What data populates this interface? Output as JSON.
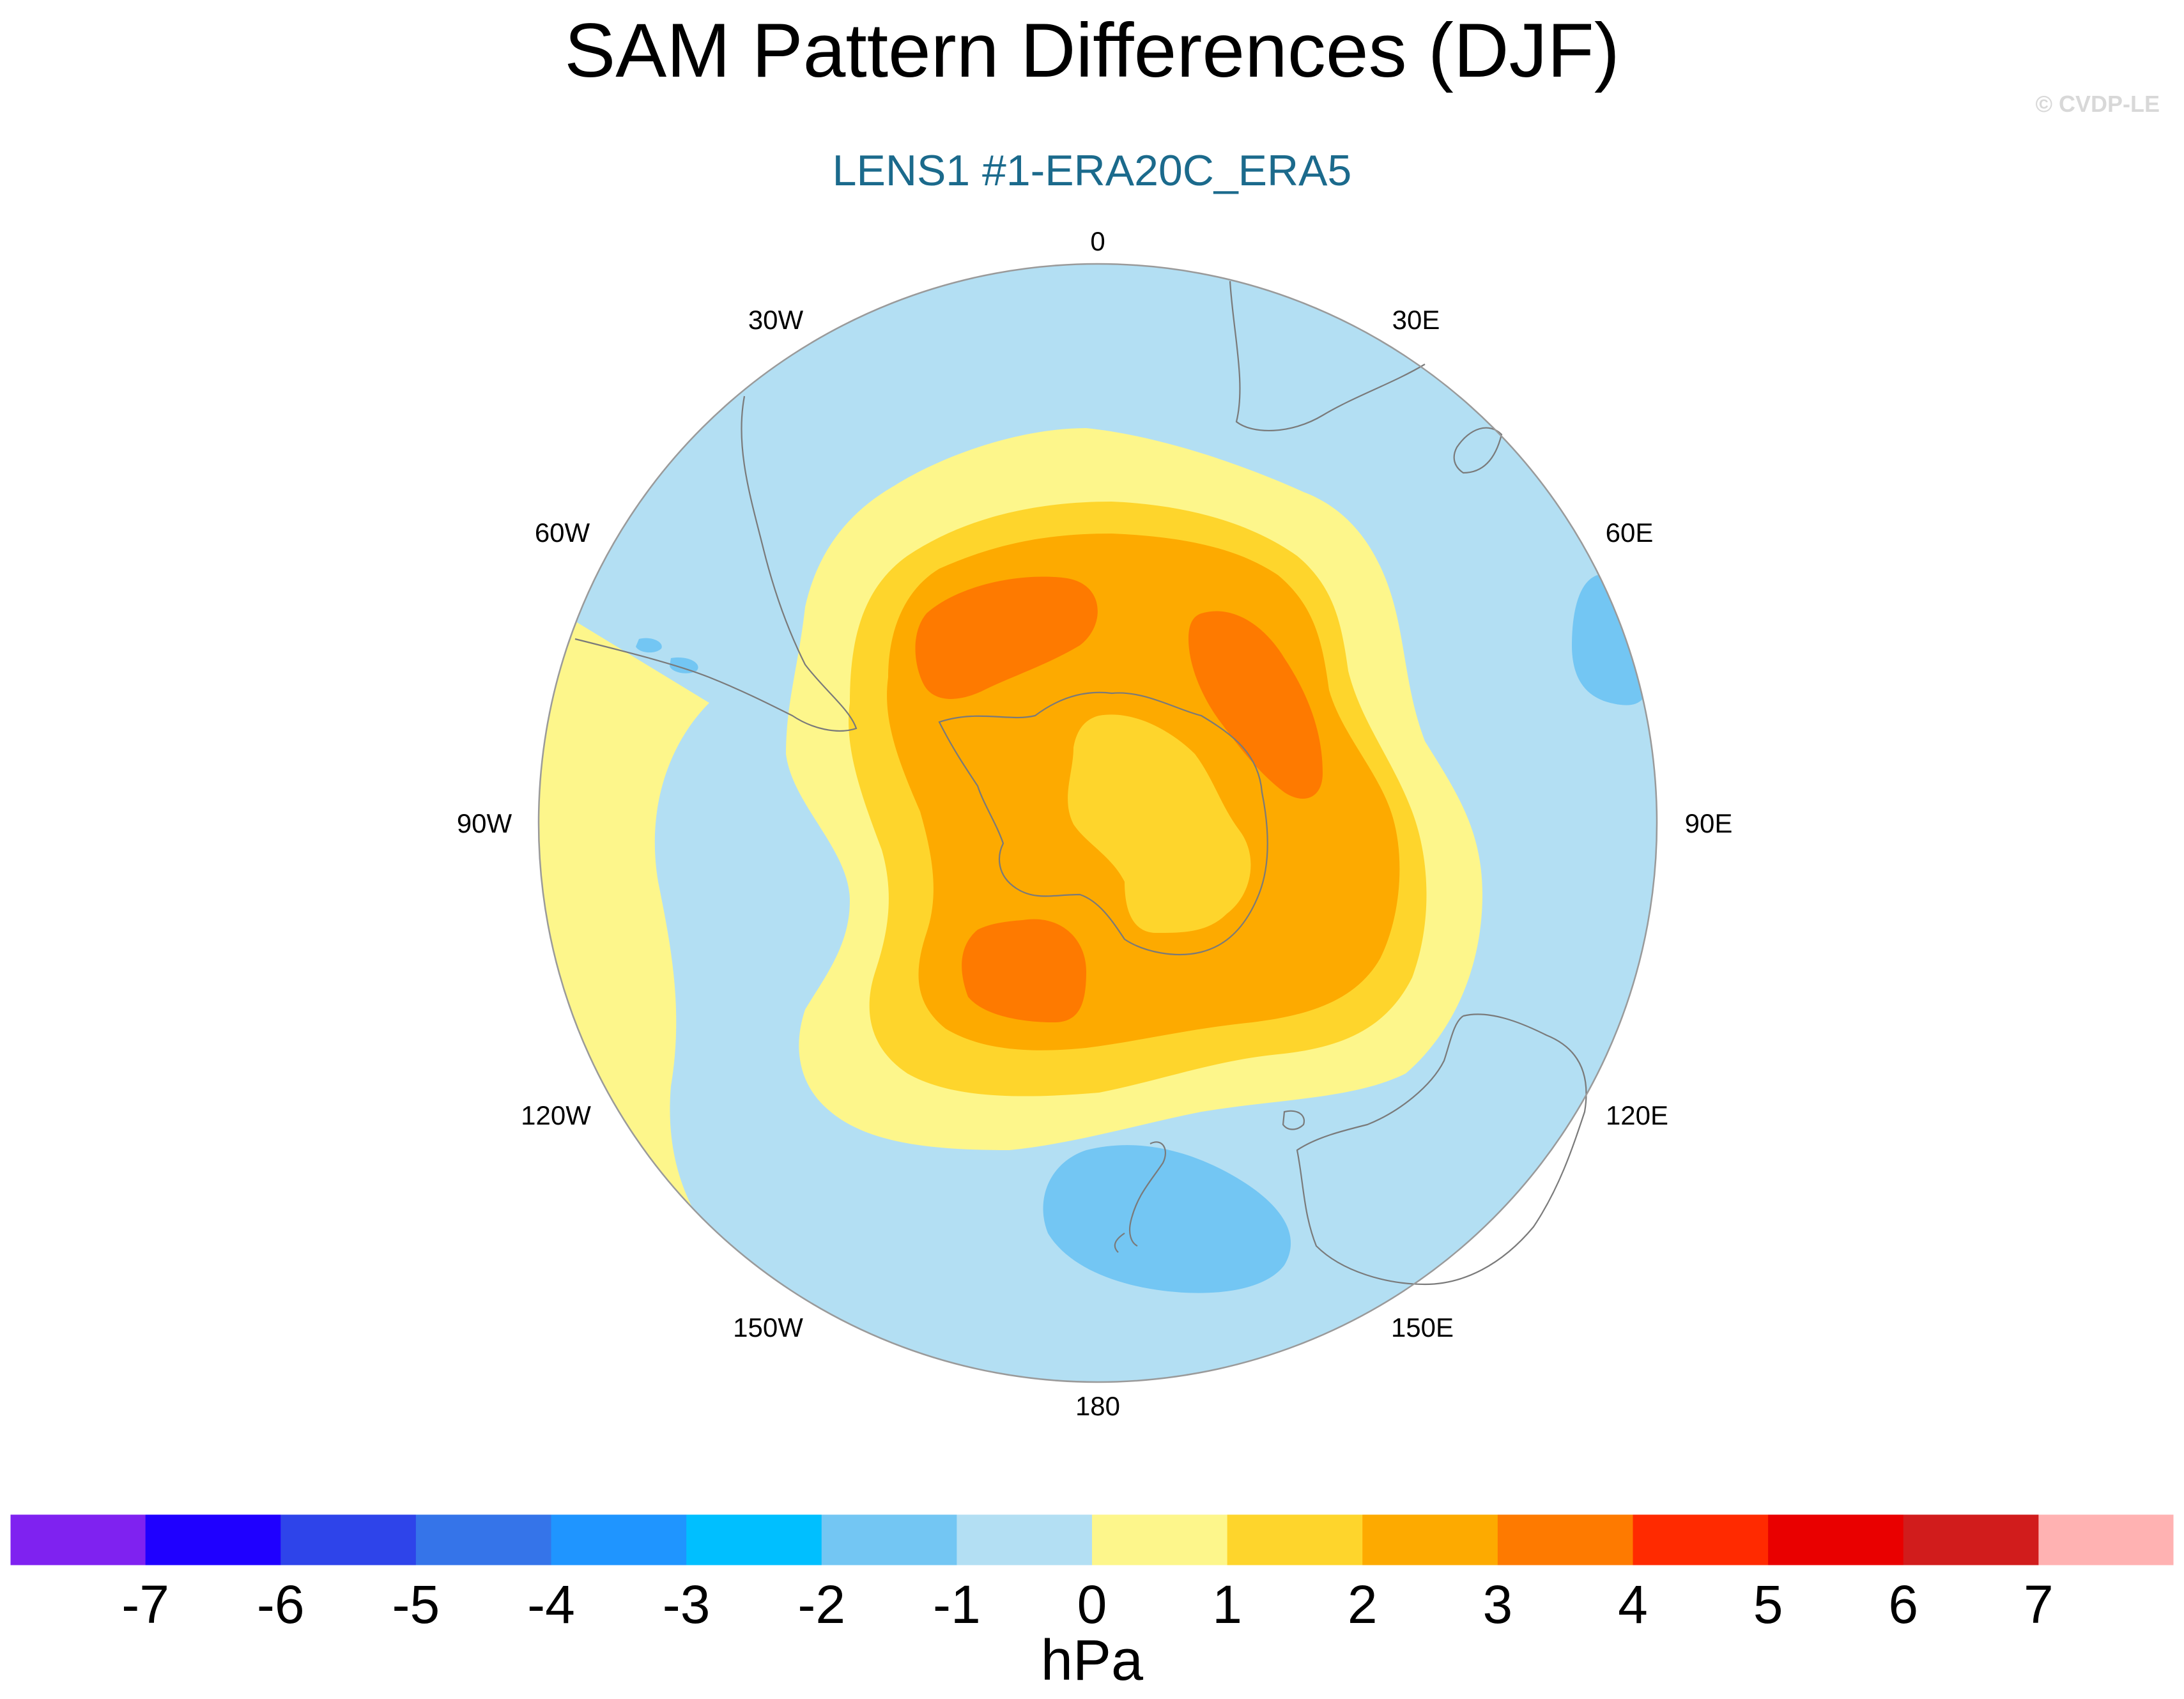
{
  "title": "SAM Pattern Differences (DJF)",
  "subtitle": "LENS1 #1-ERA20C_ERA5",
  "credit": "© CVDP-LE",
  "map": {
    "projection": "polar stereographic",
    "hemisphere": "south",
    "longitude_labels": [
      "0",
      "30E",
      "60E",
      "90E",
      "120E",
      "150E",
      "180",
      "150W",
      "120W",
      "90W",
      "60W",
      "30W"
    ],
    "ocean_fill_level": "-1 to 0",
    "fields": [
      {
        "name": "positive_ring_0_1",
        "range": "0 to 1",
        "color": "#fdf68b"
      },
      {
        "name": "positive_1_2",
        "range": "1 to 2",
        "color": "#fed52c"
      },
      {
        "name": "positive_2_3",
        "range": "2 to 3",
        "color": "#fdaa00"
      },
      {
        "name": "positive_3_4",
        "range": "3 to 4",
        "color": "#fe7a00"
      },
      {
        "name": "negative_-2_-1",
        "range": "-2 to -1",
        "color": "#73c6f3"
      }
    ]
  },
  "colorbar": {
    "units": "hPa",
    "ticks": [
      "-7",
      "-6",
      "-5",
      "-4",
      "-3",
      "-2",
      "-1",
      "0",
      "1",
      "2",
      "3",
      "4",
      "5",
      "6",
      "7"
    ],
    "colors": [
      "#7f22f0",
      "#1f00ff",
      "#2e44ea",
      "#3574e9",
      "#1f95ff",
      "#00bfff",
      "#73c6f3",
      "#b3dff3",
      "#fdf68b",
      "#fed52c",
      "#fdaa00",
      "#fe7a00",
      "#ff2a00",
      "#e90000",
      "#d11c1c",
      "#ffb2b2"
    ]
  }
}
